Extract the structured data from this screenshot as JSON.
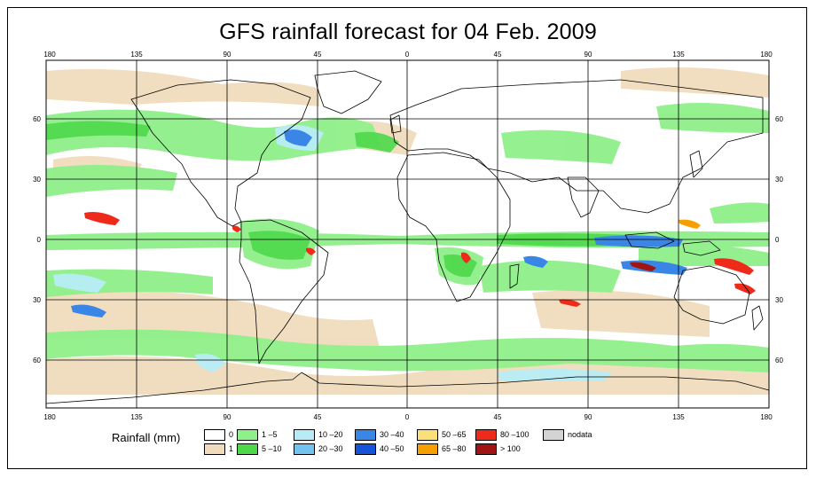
{
  "title": "GFS rainfall forecast for 04 Feb. 2009",
  "axes": {
    "top_ticks": [
      "180",
      "135",
      "90",
      "45",
      "0",
      "45",
      "90",
      "135",
      "180"
    ],
    "bottom_ticks": [
      "180",
      "135",
      "90",
      "45",
      "0",
      "45",
      "90",
      "135",
      "180"
    ],
    "left_ticks": [
      "60",
      "30",
      "0",
      "30",
      "60"
    ],
    "right_ticks": [
      "60",
      "30",
      "0",
      "30",
      "60"
    ]
  },
  "legend": {
    "label": "Rainfall (mm)",
    "items": [
      {
        "label": "0",
        "color": "#ffffff"
      },
      {
        "label": "1",
        "color": "#f0dcbd"
      },
      {
        "label": "1 –5",
        "color": "#8ff08a"
      },
      {
        "label": "5 –10",
        "color": "#4dd84a"
      },
      {
        "label": "10 –20",
        "color": "#b7ecf6"
      },
      {
        "label": "20 –30",
        "color": "#72c3f0"
      },
      {
        "label": "30 –40",
        "color": "#3a86e6"
      },
      {
        "label": "40 –50",
        "color": "#1653d9"
      },
      {
        "label": "50 –65",
        "color": "#fbe07a"
      },
      {
        "label": "65 –80",
        "color": "#f5a000"
      },
      {
        "label": "80 –100",
        "color": "#ee2a1a"
      },
      {
        "label": "> 100",
        "color": "#a01414"
      },
      {
        "label": "nodata",
        "color": "#d4d4d4"
      }
    ]
  }
}
